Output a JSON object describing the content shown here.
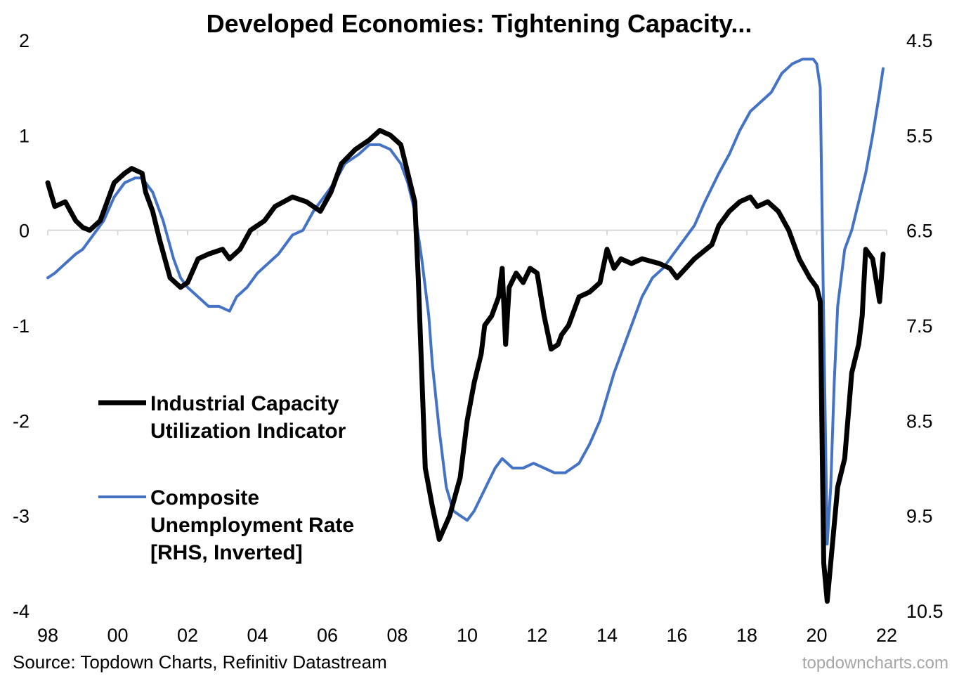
{
  "chart_data": {
    "type": "line",
    "title": "Developed Economies: Tightening Capacity...",
    "x_ticks": [
      "98",
      "00",
      "02",
      "04",
      "06",
      "08",
      "10",
      "12",
      "14",
      "16",
      "18",
      "20",
      "22"
    ],
    "x_range": [
      1998,
      2022
    ],
    "ylim_left": [
      -4,
      2
    ],
    "yticks_left": [
      "2",
      "1",
      "0",
      "-1",
      "-2",
      "-3",
      "-4"
    ],
    "ylim_right": [
      10.5,
      4.5
    ],
    "yticks_right": [
      "4.5",
      "5.5",
      "6.5",
      "7.5",
      "8.5",
      "9.5",
      "10.5"
    ],
    "right_axis_inverted": true,
    "grid": false,
    "zero_line": true,
    "legend_position": "left-center",
    "series": [
      {
        "name": "Industrial Capacity Utilization Indicator",
        "axis": "left",
        "color": "#000000",
        "x": [
          1998.0,
          1998.2,
          1998.5,
          1998.8,
          1999.0,
          1999.2,
          1999.5,
          1999.7,
          1999.9,
          2000.2,
          2000.4,
          2000.7,
          2000.8,
          2001.0,
          2001.2,
          2001.5,
          2001.8,
          2002.0,
          2002.3,
          2002.6,
          2003.0,
          2003.2,
          2003.5,
          2003.8,
          2004.2,
          2004.5,
          2005.0,
          2005.4,
          2005.8,
          2006.1,
          2006.4,
          2006.8,
          2007.2,
          2007.5,
          2007.8,
          2008.1,
          2008.3,
          2008.5,
          2008.6,
          2008.8,
          2009.0,
          2009.2,
          2009.5,
          2009.8,
          2010.0,
          2010.2,
          2010.4,
          2010.5,
          2010.7,
          2010.9,
          2011.0,
          2011.1,
          2011.2,
          2011.4,
          2011.6,
          2011.8,
          2012.0,
          2012.2,
          2012.4,
          2012.6,
          2012.7,
          2012.9,
          2013.2,
          2013.5,
          2013.8,
          2014.0,
          2014.2,
          2014.4,
          2014.7,
          2015.0,
          2015.5,
          2015.8,
          2016.0,
          2016.5,
          2017.0,
          2017.2,
          2017.5,
          2017.8,
          2018.1,
          2018.3,
          2018.6,
          2018.9,
          2019.2,
          2019.5,
          2019.8,
          2020.0,
          2020.1,
          2020.2,
          2020.3,
          2020.4,
          2020.6,
          2020.8,
          2021.0,
          2021.2,
          2021.3,
          2021.4,
          2021.6,
          2021.8,
          2021.9
        ],
        "values": [
          0.5,
          0.25,
          0.3,
          0.1,
          0.03,
          0.0,
          0.1,
          0.3,
          0.5,
          0.6,
          0.65,
          0.6,
          0.4,
          0.2,
          -0.1,
          -0.5,
          -0.6,
          -0.55,
          -0.3,
          -0.25,
          -0.2,
          -0.3,
          -0.2,
          0.0,
          0.1,
          0.25,
          0.35,
          0.3,
          0.2,
          0.4,
          0.7,
          0.85,
          0.95,
          1.05,
          1.0,
          0.9,
          0.6,
          0.3,
          -0.5,
          -2.5,
          -2.9,
          -3.25,
          -3.0,
          -2.6,
          -2.0,
          -1.6,
          -1.3,
          -1.0,
          -0.9,
          -0.7,
          -0.4,
          -1.2,
          -0.6,
          -0.45,
          -0.55,
          -0.4,
          -0.45,
          -0.9,
          -1.25,
          -1.2,
          -1.1,
          -1.0,
          -0.7,
          -0.65,
          -0.55,
          -0.2,
          -0.4,
          -0.3,
          -0.35,
          -0.3,
          -0.35,
          -0.4,
          -0.5,
          -0.3,
          -0.15,
          0.05,
          0.2,
          0.3,
          0.35,
          0.25,
          0.3,
          0.2,
          0.0,
          -0.3,
          -0.5,
          -0.6,
          -0.75,
          -3.5,
          -3.9,
          -3.5,
          -2.7,
          -2.4,
          -1.5,
          -1.2,
          -0.9,
          -0.2,
          -0.3,
          -0.75,
          -0.25
        ]
      },
      {
        "name": "Composite Unemployment Rate [RHS, Inverted]",
        "axis": "right",
        "color": "#4472c4",
        "x": [
          1998.0,
          1998.2,
          1998.5,
          1998.8,
          1999.0,
          1999.3,
          1999.6,
          1999.9,
          2000.2,
          2000.5,
          2000.7,
          2001.0,
          2001.3,
          2001.6,
          2001.8,
          2002.0,
          2002.3,
          2002.6,
          2002.9,
          2003.2,
          2003.4,
          2003.7,
          2004.0,
          2004.3,
          2004.6,
          2005.0,
          2005.3,
          2005.6,
          2005.8,
          2006.2,
          2006.5,
          2006.9,
          2007.2,
          2007.5,
          2007.8,
          2008.1,
          2008.3,
          2008.5,
          2008.7,
          2008.9,
          2009.0,
          2009.2,
          2009.4,
          2009.6,
          2009.8,
          2010.0,
          2010.2,
          2010.4,
          2010.6,
          2010.8,
          2011.0,
          2011.3,
          2011.6,
          2011.9,
          2012.2,
          2012.5,
          2012.8,
          2013.0,
          2013.2,
          2013.5,
          2013.8,
          2014.2,
          2014.5,
          2014.8,
          2015.0,
          2015.3,
          2015.6,
          2015.9,
          2016.2,
          2016.5,
          2016.8,
          2017.2,
          2017.5,
          2017.8,
          2018.1,
          2018.4,
          2018.7,
          2019.0,
          2019.3,
          2019.6,
          2019.9,
          2020.0,
          2020.1,
          2020.2,
          2020.3,
          2020.4,
          2020.5,
          2020.6,
          2020.8,
          2021.0,
          2021.2,
          2021.4,
          2021.6,
          2021.8,
          2021.9
        ],
        "values": [
          7.0,
          6.95,
          6.85,
          6.75,
          6.7,
          6.55,
          6.4,
          6.15,
          6.0,
          5.95,
          5.95,
          6.1,
          6.4,
          6.8,
          7.0,
          7.1,
          7.2,
          7.3,
          7.3,
          7.35,
          7.2,
          7.1,
          6.95,
          6.85,
          6.75,
          6.55,
          6.5,
          6.3,
          6.2,
          6.0,
          5.8,
          5.7,
          5.6,
          5.6,
          5.65,
          5.8,
          6.0,
          6.3,
          6.8,
          7.4,
          7.9,
          8.6,
          9.2,
          9.45,
          9.5,
          9.55,
          9.45,
          9.3,
          9.15,
          9.0,
          8.9,
          9.0,
          9.0,
          8.95,
          9.0,
          9.05,
          9.05,
          9.0,
          8.95,
          8.75,
          8.5,
          8.0,
          7.7,
          7.4,
          7.2,
          7.0,
          6.9,
          6.75,
          6.6,
          6.45,
          6.2,
          5.9,
          5.7,
          5.45,
          5.25,
          5.15,
          5.05,
          4.85,
          4.75,
          4.7,
          4.7,
          4.75,
          5.0,
          7.5,
          9.8,
          9.2,
          8.1,
          7.3,
          6.7,
          6.5,
          6.2,
          5.9,
          5.5,
          5.05,
          4.8
        ]
      }
    ]
  },
  "legend": {
    "items": [
      {
        "lines": [
          "Industrial Capacity",
          "Utilization Indicator"
        ],
        "color": "#000000"
      },
      {
        "lines": [
          "Composite",
          "Unemployment Rate",
          "[RHS, Inverted]"
        ],
        "color": "#4472c4"
      }
    ]
  },
  "footer": {
    "source": "Source: Topdown Charts, Refinitiv Datastream",
    "watermark": "topdowncharts.com"
  }
}
